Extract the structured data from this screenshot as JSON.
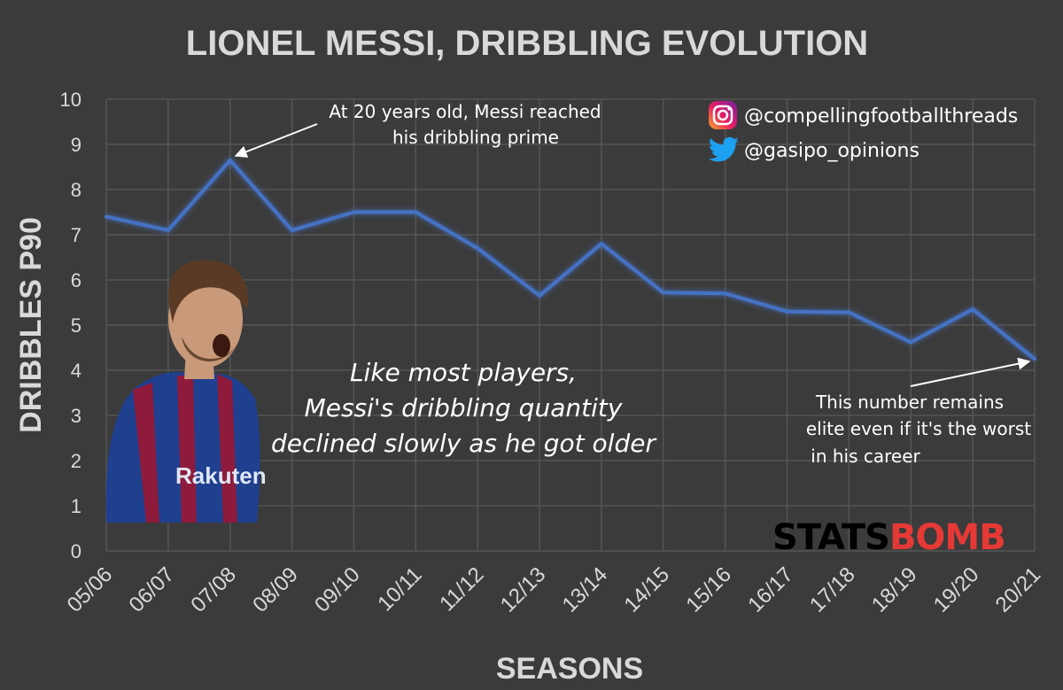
{
  "chart_data": {
    "type": "line",
    "title": "LIONEL MESSI, DRIBBLING EVOLUTION",
    "xlabel": "SEASONS",
    "ylabel": "DRIBBLES P90",
    "ylim": [
      0,
      10
    ],
    "yticks": [
      "0",
      "1",
      "2",
      "3",
      "4",
      "5",
      "6",
      "7",
      "8",
      "9",
      "10"
    ],
    "grid": true,
    "categories": [
      "05/06",
      "06/07",
      "07/08",
      "08/09",
      "09/10",
      "10/11",
      "11/12",
      "12/13",
      "13/14",
      "14/15",
      "15/16",
      "16/17",
      "17/18",
      "18/19",
      "19/20",
      "20/21"
    ],
    "values": [
      7.4,
      7.1,
      8.65,
      7.1,
      7.5,
      7.5,
      6.7,
      5.65,
      6.8,
      5.72,
      5.7,
      5.3,
      5.28,
      4.62,
      5.35,
      4.25
    ],
    "line_color": "#4472c4",
    "annotations": [
      {
        "lines": [
          "At 20 years old, Messi reached",
          "his dribbling prime"
        ],
        "points_to": "07/08"
      },
      {
        "lines": [
          "This number remains",
          "elite even if it's the worst",
          "in his career"
        ],
        "points_to": "20/21"
      },
      {
        "lines": [
          "Like most players,",
          "Messi's dribbling quantity",
          "declined slowly as he got older"
        ]
      }
    ]
  },
  "social": {
    "instagram": "@compellingfootballthreads",
    "twitter": "@gasipo_opinions"
  },
  "logo": {
    "part1": "STATS",
    "part2": "BOMB",
    "color1": "#000000",
    "color2": "#e53935"
  },
  "colors": {
    "background": "#3b3b3b",
    "text": "#d9d9d9",
    "grid": "#555555"
  }
}
